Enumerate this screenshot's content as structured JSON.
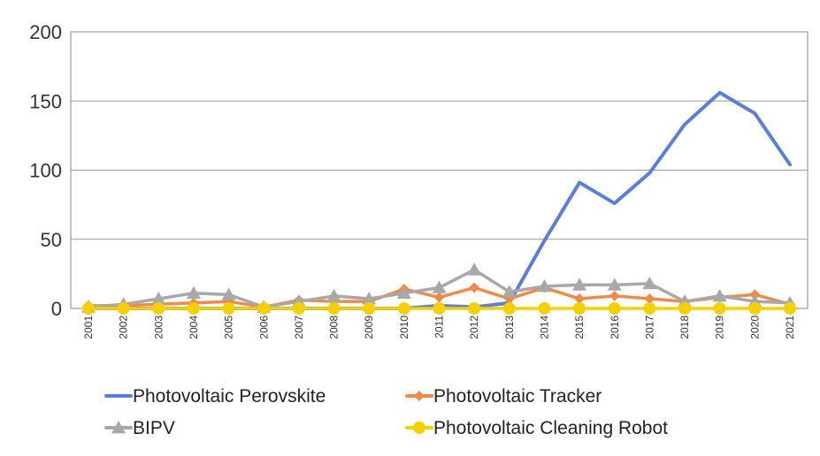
{
  "chart_data": {
    "type": "line",
    "title": "",
    "xlabel": "",
    "ylabel": "",
    "ylim": [
      0,
      200
    ],
    "yticks": [
      "0",
      "50",
      "100",
      "150",
      "200"
    ],
    "grid": "horizontal",
    "legend_position": "bottom",
    "categories": [
      "2001",
      "2002",
      "2003",
      "2004",
      "2005",
      "2006",
      "2007",
      "2008",
      "2009",
      "2010",
      "2011",
      "2012",
      "2013",
      "2014",
      "2015",
      "2016",
      "2017",
      "2018",
      "2019",
      "2020",
      "2021"
    ],
    "series": [
      {
        "name": "Photovoltaic Perovskite",
        "color": "#5b7fd6",
        "marker": "none",
        "values": [
          0,
          0,
          0,
          0,
          0,
          0,
          0,
          0,
          0,
          0,
          2,
          1,
          4,
          49,
          91,
          76,
          98,
          133,
          156,
          141,
          104
        ]
      },
      {
        "name": "Photovoltaic Tracker",
        "color": "#f08a4b",
        "marker": "diamond",
        "values": [
          2,
          2,
          3,
          4,
          5,
          1,
          6,
          5,
          5,
          14,
          8,
          15,
          7,
          15,
          7,
          9,
          7,
          5,
          8,
          10,
          3
        ]
      },
      {
        "name": "BIPV",
        "color": "#a8a8a8",
        "marker": "triangle",
        "values": [
          1,
          3,
          7,
          11,
          10,
          1,
          5,
          9,
          7,
          11,
          15,
          28,
          12,
          16,
          17,
          17,
          18,
          5,
          9,
          5,
          4
        ]
      },
      {
        "name": "Photovoltaic Cleaning Robot",
        "color": "#f5d000",
        "marker": "circle",
        "values": [
          0,
          0,
          0,
          0,
          0,
          0,
          0,
          0,
          0,
          0,
          0,
          0,
          0,
          0,
          0,
          0,
          0,
          0,
          0,
          0,
          0
        ]
      }
    ]
  }
}
